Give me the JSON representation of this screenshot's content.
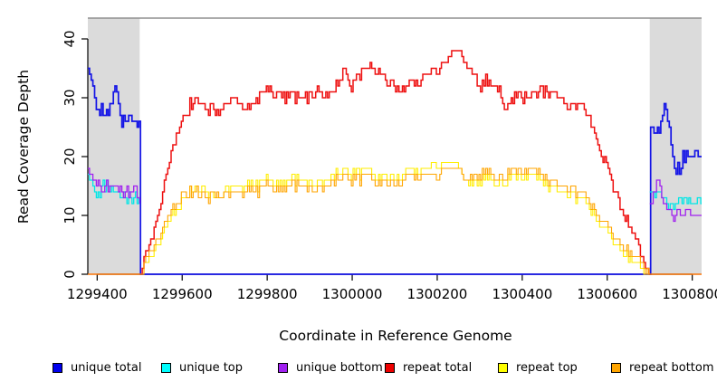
{
  "chart_data": {
    "type": "line",
    "title": "",
    "xlabel": "Coordinate in Reference Genome",
    "ylabel": "Read Coverage Depth",
    "xlim": [
      1299378,
      1300822
    ],
    "ylim": [
      0,
      43.5
    ],
    "x_ticks": [
      1299400,
      1299600,
      1299800,
      1300000,
      1300200,
      1300400,
      1300600,
      1300800
    ],
    "y_ticks": [
      0,
      10,
      20,
      30,
      40
    ],
    "grid": false,
    "legend_position": "bottom",
    "shade_color": "#DBDBDB",
    "top_rule_color": "#8F8F8F",
    "shaded_regions": [
      {
        "x0": 1299378,
        "x1": 1299500
      },
      {
        "x0": 1300700,
        "x1": 1300822
      }
    ],
    "series": [
      {
        "name": "unique total",
        "color": "#1414E6",
        "width": 1.7,
        "noise": 0.4,
        "segments": [
          [
            1299378,
            35,
            1299386,
            33,
            1299392,
            31,
            1299396,
            28,
            1299402,
            28,
            1299406,
            27,
            1299410,
            29,
            1299416,
            27,
            1299420,
            28,
            1299426,
            27,
            1299430,
            29,
            1299436,
            30,
            1299442,
            32,
            1299448,
            30,
            1299452,
            28,
            1299458,
            25,
            1299464,
            28,
            1299468,
            24,
            1299472,
            28,
            1299476,
            26,
            1299480,
            27,
            1299484,
            25,
            1299488,
            26,
            1299492,
            25,
            1299496,
            26,
            1299500,
            25,
            1299502,
            0,
            1300698,
            0,
            1300700,
            25,
            1300704,
            26,
            1300708,
            24,
            1300714,
            24,
            1300718,
            25,
            1300722,
            24,
            1300726,
            26,
            1300730,
            27,
            1300734,
            29,
            1300738,
            28,
            1300742,
            26,
            1300746,
            25,
            1300750,
            22,
            1300754,
            20,
            1300758,
            18,
            1300762,
            17,
            1300766,
            19,
            1300770,
            17,
            1300774,
            18,
            1300778,
            21,
            1300782,
            19,
            1300786,
            21,
            1300792,
            20,
            1300800,
            20,
            1300810,
            21,
            1300822,
            20
          ]
        ]
      },
      {
        "name": "unique top",
        "color": "#00E6E6",
        "width": 1.3,
        "noise": 0.4,
        "segments": [
          [
            1299378,
            17,
            1299384,
            16,
            1299390,
            15,
            1299394,
            14,
            1299398,
            13,
            1299402,
            14,
            1299406,
            13,
            1299410,
            15,
            1299414,
            16,
            1299418,
            14,
            1299424,
            16,
            1299428,
            15,
            1299432,
            14,
            1299436,
            16,
            1299440,
            13,
            1299444,
            15,
            1299448,
            14,
            1299452,
            13,
            1299456,
            12,
            1299460,
            14,
            1299466,
            13,
            1299470,
            12,
            1299474,
            14,
            1299478,
            13,
            1299482,
            12,
            1299486,
            13,
            1299490,
            14,
            1299494,
            12,
            1299500,
            13
          ],
          [
            1300700,
            14,
            1300708,
            14,
            1300714,
            13,
            1300720,
            14,
            1300726,
            14,
            1300732,
            13,
            1300738,
            12,
            1300744,
            11,
            1300750,
            12,
            1300756,
            11,
            1300762,
            12,
            1300768,
            13,
            1300774,
            12,
            1300780,
            13,
            1300786,
            12,
            1300794,
            13,
            1300804,
            12,
            1300814,
            13,
            1300822,
            12
          ]
        ]
      },
      {
        "name": "unique bottom",
        "color": "#A020F0",
        "width": 1.3,
        "noise": 0.4,
        "segments": [
          [
            1299378,
            18,
            1299386,
            17,
            1299392,
            16,
            1299398,
            15,
            1299404,
            16,
            1299410,
            14,
            1299416,
            15,
            1299420,
            16,
            1299426,
            14,
            1299432,
            16,
            1299438,
            15,
            1299444,
            16,
            1299448,
            14,
            1299454,
            15,
            1299460,
            13,
            1299464,
            14,
            1299470,
            15,
            1299474,
            13,
            1299480,
            15,
            1299484,
            14,
            1299490,
            15,
            1299496,
            13,
            1299500,
            12
          ],
          [
            1300700,
            12,
            1300706,
            13,
            1300712,
            14,
            1300718,
            16,
            1300724,
            15,
            1300730,
            13,
            1300736,
            12,
            1300742,
            10,
            1300748,
            11,
            1300754,
            9,
            1300760,
            10,
            1300766,
            11,
            1300772,
            10,
            1300780,
            10,
            1300788,
            11,
            1300796,
            10,
            1300808,
            10,
            1300822,
            10
          ]
        ]
      },
      {
        "name": "repeat total",
        "color": "#EE1111",
        "width": 1.5,
        "noise": 0.9,
        "segments": [
          [
            1299378,
            0,
            1299500,
            0,
            1299520,
            4,
            1299540,
            10,
            1299560,
            16,
            1299580,
            22,
            1299600,
            26,
            1299620,
            29,
            1299640,
            30,
            1299660,
            28,
            1299680,
            28,
            1299700,
            28,
            1299720,
            30,
            1299740,
            28,
            1299760,
            29,
            1299780,
            30,
            1299800,
            31,
            1299820,
            30,
            1299840,
            30,
            1299860,
            30,
            1299880,
            30,
            1299900,
            30,
            1299920,
            32,
            1299940,
            30,
            1299960,
            32,
            1299980,
            35,
            1300000,
            32,
            1300020,
            34,
            1300040,
            36,
            1300060,
            34,
            1300080,
            33,
            1300100,
            32,
            1300120,
            31,
            1300140,
            32,
            1300160,
            33,
            1300180,
            34,
            1300200,
            35,
            1300220,
            36,
            1300240,
            38,
            1300260,
            37,
            1300280,
            34,
            1300300,
            32,
            1300320,
            33,
            1300340,
            32,
            1300360,
            28,
            1300380,
            30,
            1300400,
            30,
            1300420,
            30,
            1300440,
            31,
            1300460,
            31,
            1300480,
            30,
            1300500,
            29,
            1300520,
            28,
            1300540,
            29,
            1300560,
            26,
            1300580,
            22,
            1300600,
            18,
            1300620,
            14,
            1300640,
            10,
            1300660,
            7,
            1300680,
            3,
            1300700,
            0,
            1300822,
            0
          ]
        ]
      },
      {
        "name": "repeat top",
        "color": "#FFEE00",
        "width": 1.1,
        "noise": 0.8,
        "segments": [
          [
            1299378,
            0,
            1299500,
            0,
            1299520,
            2,
            1299540,
            5,
            1299560,
            8,
            1299580,
            10,
            1299600,
            12,
            1299620,
            14,
            1299640,
            15,
            1299660,
            14,
            1299680,
            13,
            1299700,
            14,
            1299720,
            15,
            1299740,
            14,
            1299760,
            16,
            1299780,
            15,
            1299800,
            16,
            1299820,
            15,
            1299840,
            15,
            1299860,
            16,
            1299880,
            16,
            1299900,
            15,
            1299920,
            16,
            1299940,
            16,
            1299960,
            17,
            1299980,
            18,
            1300000,
            17,
            1300020,
            17,
            1300040,
            18,
            1300060,
            16,
            1300080,
            17,
            1300100,
            16,
            1300120,
            17,
            1300140,
            17,
            1300160,
            18,
            1300180,
            18,
            1300200,
            19,
            1300220,
            19,
            1300240,
            19,
            1300260,
            17,
            1300280,
            15,
            1300300,
            16,
            1300320,
            17,
            1300340,
            15,
            1300360,
            16,
            1300380,
            17,
            1300400,
            16,
            1300420,
            17,
            1300440,
            16,
            1300460,
            15,
            1300480,
            14,
            1300500,
            14,
            1300520,
            13,
            1300540,
            13,
            1300560,
            11,
            1300580,
            9,
            1300600,
            7,
            1300620,
            5,
            1300640,
            4,
            1300660,
            2,
            1300680,
            1,
            1300700,
            0,
            1300822,
            0
          ]
        ]
      },
      {
        "name": "repeat bottom",
        "color": "#FFA500",
        "width": 1.1,
        "noise": 0.8,
        "segments": [
          [
            1299378,
            0,
            1299500,
            0,
            1299520,
            3,
            1299540,
            6,
            1299560,
            9,
            1299580,
            11,
            1299600,
            13,
            1299620,
            14,
            1299640,
            14,
            1299660,
            13,
            1299680,
            14,
            1299700,
            13,
            1299720,
            14,
            1299740,
            13,
            1299760,
            15,
            1299780,
            14,
            1299800,
            15,
            1299820,
            14,
            1299840,
            14,
            1299860,
            15,
            1299880,
            15,
            1299900,
            14,
            1299920,
            15,
            1299940,
            15,
            1299960,
            16,
            1299980,
            17,
            1300000,
            16,
            1300020,
            16,
            1300040,
            17,
            1300060,
            15,
            1300080,
            16,
            1300100,
            15,
            1300120,
            16,
            1300140,
            16,
            1300160,
            17,
            1300180,
            17,
            1300200,
            17,
            1300220,
            18,
            1300240,
            18,
            1300260,
            17,
            1300280,
            16,
            1300300,
            17,
            1300320,
            18,
            1300340,
            16,
            1300360,
            17,
            1300380,
            18,
            1300400,
            17,
            1300420,
            18,
            1300440,
            17,
            1300460,
            16,
            1300480,
            15,
            1300500,
            15,
            1300520,
            14,
            1300540,
            14,
            1300560,
            12,
            1300580,
            10,
            1300600,
            8,
            1300620,
            6,
            1300640,
            5,
            1300660,
            3,
            1300680,
            2,
            1300700,
            0,
            1300822,
            0
          ]
        ]
      }
    ]
  },
  "legend": {
    "items": [
      {
        "label": "unique total",
        "color": "#0000EE"
      },
      {
        "label": "unique top",
        "color": "#00FFFF"
      },
      {
        "label": "unique bottom",
        "color": "#A020F0"
      },
      {
        "label": "repeat total",
        "color": "#EE0000"
      },
      {
        "label": "repeat top",
        "color": "#FFFF00"
      },
      {
        "label": "repeat bottom",
        "color": "#FFA500"
      }
    ]
  }
}
